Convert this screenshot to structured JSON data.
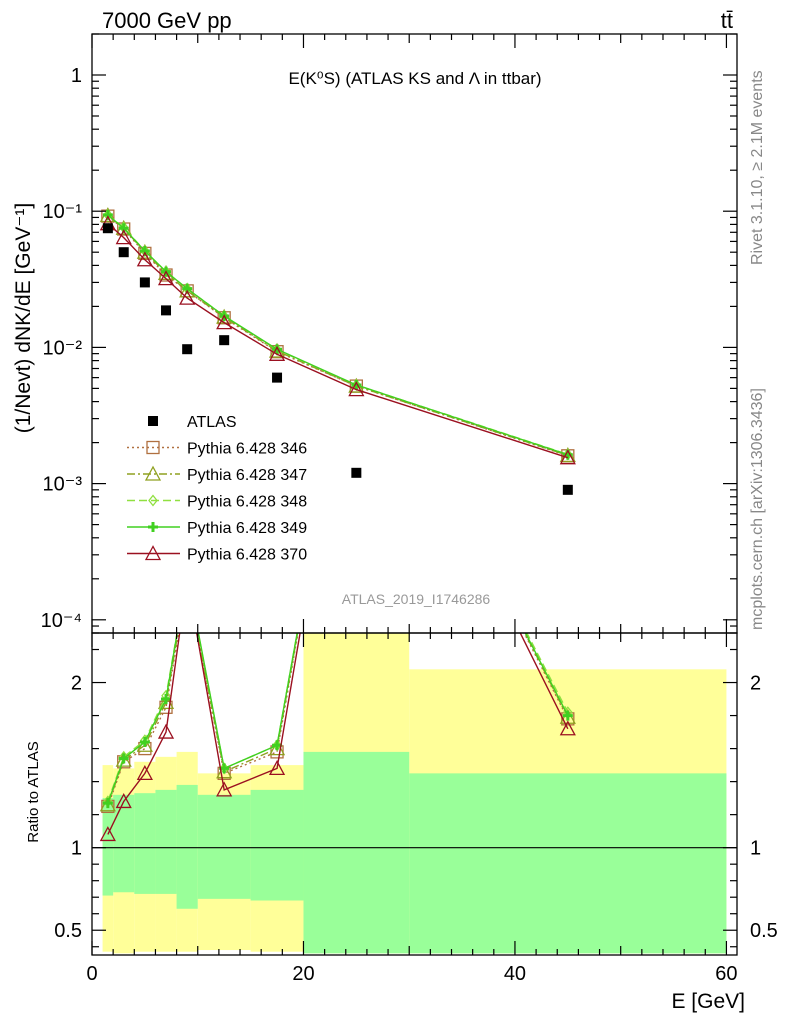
{
  "header": {
    "left": "7000 GeV pp",
    "right": "tt̄"
  },
  "side_labels": {
    "rivet": "Rivet 3.1.10, ≥ 2.1M events",
    "mcplots": "mcplots.cern.ch [arXiv:1306.3436]"
  },
  "chart_data": {
    "type": "scatter",
    "title": "E(K⁰S) (ATLAS KS and Λ in ttbar)",
    "analysis_label": "ATLAS_2019_I1746286",
    "xlabel": "E [GeV]",
    "ylabel": "(1/Nevt) dNK/dE [GeV⁻¹]",
    "ratio_ylabel": "Ratio to ATLAS",
    "xlim": [
      0,
      61
    ],
    "ylim": [
      8e-05,
      2
    ],
    "yscale": "log",
    "ratio_ylim": [
      0.35,
      2.3
    ],
    "x_ticks": [
      "0",
      "20",
      "40",
      "60"
    ],
    "y_ticks": [
      "1",
      "10⁻¹",
      "10⁻²",
      "10⁻³",
      "10⁻⁴"
    ],
    "ratio_ticks": [
      "0.5",
      "1",
      "2"
    ],
    "legend_position": "center-left",
    "x": [
      1.5,
      3,
      5,
      7,
      9,
      12.5,
      17.5,
      25,
      45
    ],
    "x_bins": [
      [
        1,
        2
      ],
      [
        2,
        4
      ],
      [
        4,
        6
      ],
      [
        6,
        8
      ],
      [
        8,
        10
      ],
      [
        10,
        15
      ],
      [
        15,
        20
      ],
      [
        20,
        30
      ],
      [
        30,
        60
      ]
    ],
    "series": [
      {
        "name": "ATLAS",
        "kind": "data",
        "color": "#000000",
        "values": [
          0.075,
          0.05,
          0.03,
          0.0187,
          0.0097,
          0.0113,
          0.006,
          0.0012,
          0.0009
        ]
      },
      {
        "name": "Pythia 6.428 346",
        "kind": "mc",
        "marker": "square",
        "dash": "2,3",
        "color": "#b07040",
        "values": [
          0.092,
          0.074,
          0.049,
          0.034,
          0.026,
          0.0165,
          0.0093,
          0.0052,
          0.0016
        ]
      },
      {
        "name": "Pythia 6.428 347",
        "kind": "mc",
        "marker": "triangle",
        "dash": "8,3,2,3",
        "color": "#8fa020",
        "values": [
          0.093,
          0.075,
          0.05,
          0.035,
          0.026,
          0.0167,
          0.0094,
          0.0052,
          0.00161
        ]
      },
      {
        "name": "Pythia 6.428 348",
        "kind": "mc",
        "marker": "diamond",
        "dash": "8,4",
        "color": "#90e040",
        "values": [
          0.094,
          0.076,
          0.051,
          0.036,
          0.027,
          0.017,
          0.0096,
          0.0053,
          0.00164
        ]
      },
      {
        "name": "Pythia 6.428 349",
        "kind": "mc",
        "marker": "cross",
        "dash": "",
        "color": "#40d020",
        "values": [
          0.094,
          0.075,
          0.051,
          0.036,
          0.027,
          0.017,
          0.0097,
          0.0053,
          0.00163
        ]
      },
      {
        "name": "Pythia 6.428 370",
        "kind": "mc",
        "marker": "triangle",
        "dash": "",
        "color": "#9b1020",
        "values": [
          0.081,
          0.064,
          0.044,
          0.032,
          0.023,
          0.0152,
          0.0089,
          0.0049,
          0.00155
        ]
      }
    ],
    "ratio_series": [
      [
        1.25,
        1.52,
        1.6,
        1.85,
        2.6,
        1.45,
        1.58,
        4.3,
        1.78
      ],
      [
        1.26,
        1.53,
        1.62,
        1.88,
        2.62,
        1.46,
        1.6,
        4.3,
        1.79
      ],
      [
        1.28,
        1.55,
        1.65,
        1.92,
        2.65,
        1.48,
        1.62,
        4.3,
        1.82
      ],
      [
        1.27,
        1.54,
        1.64,
        1.9,
        2.66,
        1.48,
        1.62,
        4.3,
        1.8
      ],
      [
        1.08,
        1.28,
        1.45,
        1.7,
        2.63,
        1.35,
        1.48,
        4.3,
        1.72
      ]
    ],
    "ratio_band_outer": [
      [
        0.37,
        1.5
      ],
      [
        0.36,
        1.48
      ],
      [
        0.37,
        1.52
      ],
      [
        0.37,
        1.55
      ],
      [
        0.37,
        1.58
      ],
      [
        0.38,
        1.45
      ],
      [
        0.37,
        1.5
      ],
      [
        0.36,
        2.5
      ],
      [
        0.36,
        2.08
      ]
    ],
    "ratio_band_inner": [
      [
        0.71,
        1.3
      ],
      [
        0.73,
        1.32
      ],
      [
        0.72,
        1.33
      ],
      [
        0.72,
        1.35
      ],
      [
        0.63,
        1.38
      ],
      [
        0.69,
        1.32
      ],
      [
        0.68,
        1.35
      ],
      [
        0.36,
        1.58
      ],
      [
        0.36,
        1.45
      ]
    ]
  }
}
